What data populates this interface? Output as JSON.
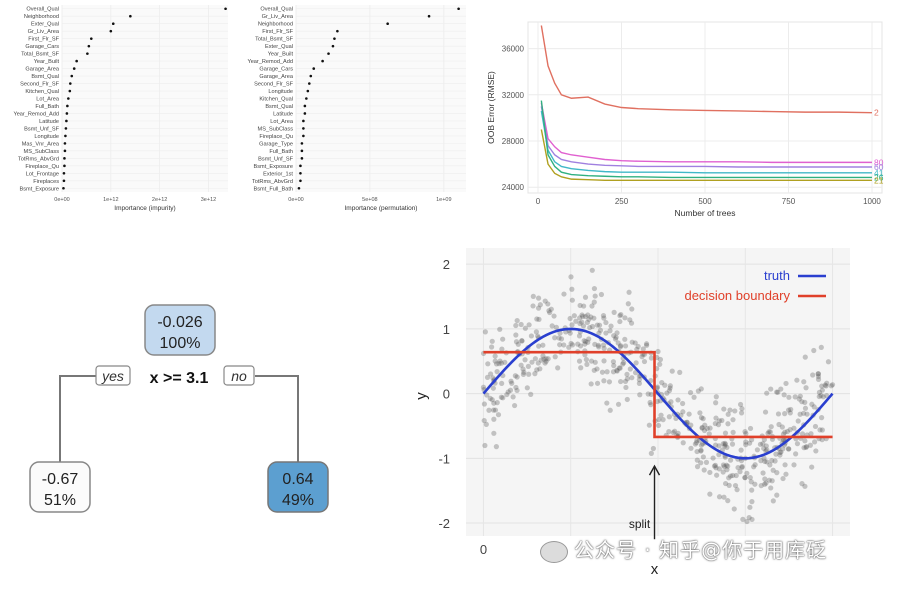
{
  "chart_data": [
    {
      "type": "scatter",
      "xlabel": "Importance (impurity)",
      "ylabel": "",
      "x_ticks": [
        "0e+00",
        "1e+12",
        "2e+12",
        "3e+12"
      ],
      "xlim": [
        0,
        3.4
      ],
      "x_unit_note": "values in units of 1e+12",
      "categories": [
        "Overall_Qual",
        "Neighborhood",
        "Exter_Qual",
        "Gr_Liv_Area",
        "First_Flr_SF",
        "Garage_Cars",
        "Total_Bsmt_SF",
        "Year_Built",
        "Garage_Area",
        "Bsmt_Qual",
        "Second_Flr_SF",
        "Kitchen_Qual",
        "Lot_Area",
        "Full_Bath",
        "Year_Remod_Add",
        "Latitude",
        "Bsmt_Unf_SF",
        "Longitude",
        "Mas_Vnr_Area",
        "MS_SubClass",
        "TotRms_AbvGrd",
        "Fireplace_Qu",
        "Lot_Frontage",
        "Fireplaces",
        "Bsmt_Exposure"
      ],
      "values": [
        3.35,
        1.4,
        1.05,
        1.0,
        0.6,
        0.55,
        0.52,
        0.3,
        0.25,
        0.2,
        0.17,
        0.16,
        0.13,
        0.11,
        0.1,
        0.09,
        0.08,
        0.07,
        0.06,
        0.06,
        0.05,
        0.05,
        0.04,
        0.04,
        0.03
      ]
    },
    {
      "type": "scatter",
      "xlabel": "Importance (permutation)",
      "ylabel": "",
      "x_ticks": [
        "0e+00",
        "5e+08",
        "1e+09"
      ],
      "xlim": [
        0,
        1.15
      ],
      "x_unit_note": "values in units of 1e+09",
      "categories": [
        "Overall_Qual",
        "Gr_Liv_Area",
        "Neighborhood",
        "First_Flr_SF",
        "Total_Bsmt_SF",
        "Exter_Qual",
        "Year_Built",
        "Year_Remod_Add",
        "Garage_Cars",
        "Garage_Area",
        "Second_Flr_SF",
        "Longitude",
        "Kitchen_Qual",
        "Bsmt_Qual",
        "Latitude",
        "Lot_Area",
        "MS_SubClass",
        "Fireplace_Qu",
        "Garage_Type",
        "Full_Bath",
        "Bsmt_Unf_SF",
        "Bsmt_Exposure",
        "Exterior_1st",
        "TotRms_AbvGrd",
        "Bsmt_Full_Bath"
      ],
      "values": [
        1.1,
        0.9,
        0.62,
        0.28,
        0.26,
        0.25,
        0.22,
        0.18,
        0.12,
        0.1,
        0.09,
        0.08,
        0.07,
        0.06,
        0.06,
        0.05,
        0.05,
        0.05,
        0.04,
        0.04,
        0.04,
        0.03,
        0.03,
        0.03,
        0.02
      ]
    },
    {
      "type": "line",
      "xlabel": "Number of trees",
      "ylabel": "OOB Error (RMSE)",
      "x_ticks": [
        0,
        250,
        500,
        750,
        1000
      ],
      "y_ticks": [
        24000,
        28000,
        32000,
        36000
      ],
      "xlim": [
        -30,
        1030
      ],
      "ylim": [
        23500,
        38300
      ],
      "x": [
        10,
        30,
        50,
        70,
        100,
        150,
        200,
        250,
        300,
        400,
        500,
        600,
        700,
        800,
        900,
        1000
      ],
      "series": [
        {
          "name": "2",
          "color": "#e07060",
          "values": [
            38000,
            34500,
            33000,
            32000,
            31700,
            31800,
            31200,
            30900,
            30800,
            30700,
            30650,
            30600,
            30550,
            30500,
            30500,
            30450
          ]
        },
        {
          "name": "80",
          "color": "#e060d0",
          "values": [
            31300,
            28200,
            27500,
            27000,
            26800,
            26600,
            26400,
            26300,
            26250,
            26200,
            26200,
            26200,
            26150,
            26150,
            26150,
            26150
          ]
        },
        {
          "name": "60",
          "color": "#a080e0",
          "values": [
            31000,
            27600,
            26800,
            26400,
            26200,
            26000,
            25900,
            25850,
            25800,
            25800,
            25800,
            25750,
            25750,
            25750,
            25750,
            25750
          ]
        },
        {
          "name": "41",
          "color": "#40b8c8",
          "values": [
            30600,
            27200,
            26200,
            25800,
            25600,
            25450,
            25350,
            25300,
            25300,
            25300,
            25250,
            25250,
            25250,
            25250,
            25250,
            25250
          ]
        },
        {
          "name": "26",
          "color": "#30b080",
          "values": [
            31500,
            26800,
            25800,
            25300,
            25100,
            25000,
            24950,
            24900,
            24900,
            24850,
            24850,
            24850,
            24850,
            24850,
            24850,
            24850
          ]
        },
        {
          "name": "21",
          "color": "#b0a020",
          "values": [
            29000,
            26000,
            25200,
            24900,
            24700,
            24650,
            24600,
            24600,
            24600,
            24600,
            24600,
            24600,
            24600,
            24600,
            24600,
            24600
          ]
        }
      ]
    },
    {
      "type": "scatter",
      "ylabel": "y",
      "xlabel": "x",
      "x_ticks": [
        0
      ],
      "y_ticks": [
        -2,
        -1,
        0,
        1,
        2
      ],
      "xlim": [
        -0.05,
        1.05
      ],
      "ylim": [
        -2.2,
        2.25
      ],
      "legend": [
        {
          "label": "truth",
          "color": "#2a3fcf"
        },
        {
          "label": "decision boundary",
          "color": "#e0402a"
        }
      ],
      "split_x": 3.1,
      "split_label": "split",
      "step_levels": [
        0.64,
        -0.67
      ],
      "point_count": 600
    }
  ],
  "tree": {
    "root": {
      "value": "-0.026",
      "pct": "100%"
    },
    "rule": "x >= 3.1",
    "yes": "yes",
    "no": "no",
    "left": {
      "value": "-0.67",
      "pct": "51%"
    },
    "right": {
      "value": "0.64",
      "pct": "49%"
    }
  },
  "watermark": "公众号 · 知乎@你于用库砭"
}
